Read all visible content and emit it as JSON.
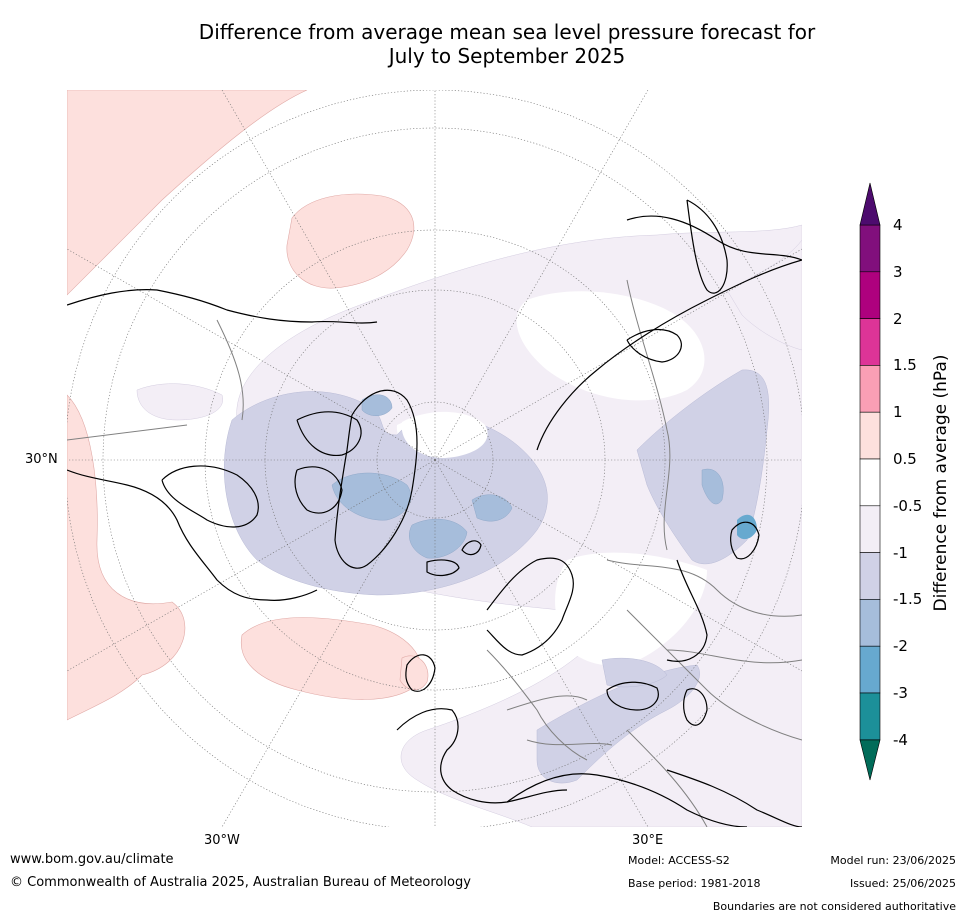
{
  "title": {
    "line1": "Difference from average mean sea level pressure forecast for",
    "line2": "July to September 2025"
  },
  "map": {
    "lat_label": "30°N",
    "lon_labels": [
      "30°W",
      "30°E"
    ],
    "colors": {
      "land_outline": "#000000",
      "borders": "#808080",
      "graticule": "#6e6e6e",
      "positive_05_1": "#fde0dd",
      "negative_05_1": "#f3eef6",
      "negative_1_15": "#d0d1e6",
      "negative_15_2": "#a6bddb",
      "negative_2_3": "#67a9cf"
    }
  },
  "colorbar": {
    "title": "Difference from average (hPa)",
    "ticks": [
      "4",
      "3",
      "2",
      "1.5",
      "1",
      "0.5",
      "-0.5",
      "-1",
      "-1.5",
      "-2",
      "-3",
      "-4"
    ],
    "colors": [
      "#810f7c",
      "#ae017e",
      "#dd3497",
      "#fa9fb5",
      "#fde0dd",
      "#ffffff",
      "#f3eef6",
      "#d0d1e6",
      "#a6bddb",
      "#67a9cf",
      "#1c9099"
    ],
    "over_color": "#4d0b6e",
    "under_color": "#016c59"
  },
  "footer": {
    "url": "www.bom.gov.au/climate",
    "copyright": "© Commonwealth of Australia 2025, Australian Bureau of Meteorology",
    "model": "Model: ACCESS-S2",
    "base_period": "Base period: 1981-2018",
    "model_run": "Model run: 23/06/2025",
    "issued": "Issued: 25/06/2025",
    "disclaimer": "Boundaries are not considered authoritative"
  }
}
